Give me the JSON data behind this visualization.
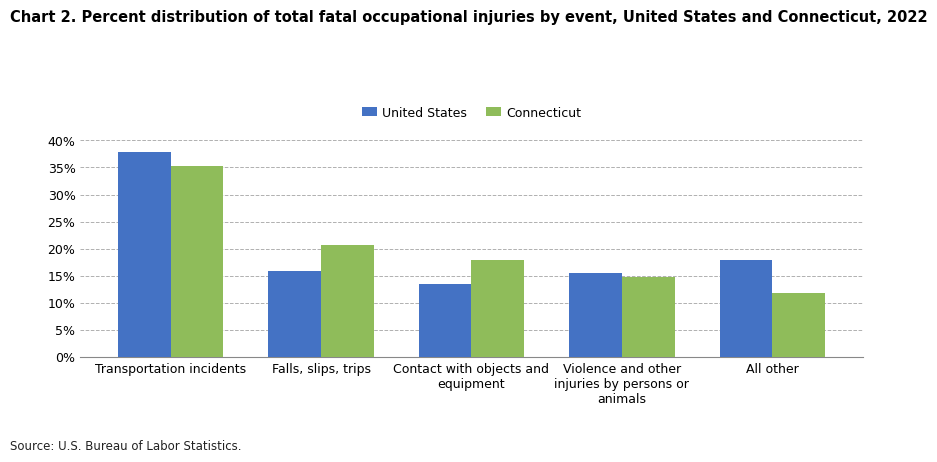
{
  "title": "Chart 2. Percent distribution of total fatal occupational injuries by event, United States and Connecticut, 2022",
  "categories": [
    "Transportation incidents",
    "Falls, slips, trips",
    "Contact with objects and\nequipment",
    "Violence and other\ninjuries by persons or\nanimals",
    "All other"
  ],
  "us_values": [
    37.8,
    15.9,
    13.5,
    15.5,
    17.8
  ],
  "ct_values": [
    35.3,
    20.7,
    17.8,
    14.7,
    11.8
  ],
  "us_color": "#4472C4",
  "ct_color": "#8FBC5A",
  "us_label": "United States",
  "ct_label": "Connecticut",
  "ylim": [
    0,
    42
  ],
  "yticks": [
    0,
    5,
    10,
    15,
    20,
    25,
    30,
    35,
    40
  ],
  "source_text": "Source: U.S. Bureau of Labor Statistics.",
  "background_color": "#ffffff",
  "bar_width": 0.35,
  "title_fontsize": 10.5,
  "axis_fontsize": 9,
  "legend_fontsize": 9,
  "source_fontsize": 8.5
}
